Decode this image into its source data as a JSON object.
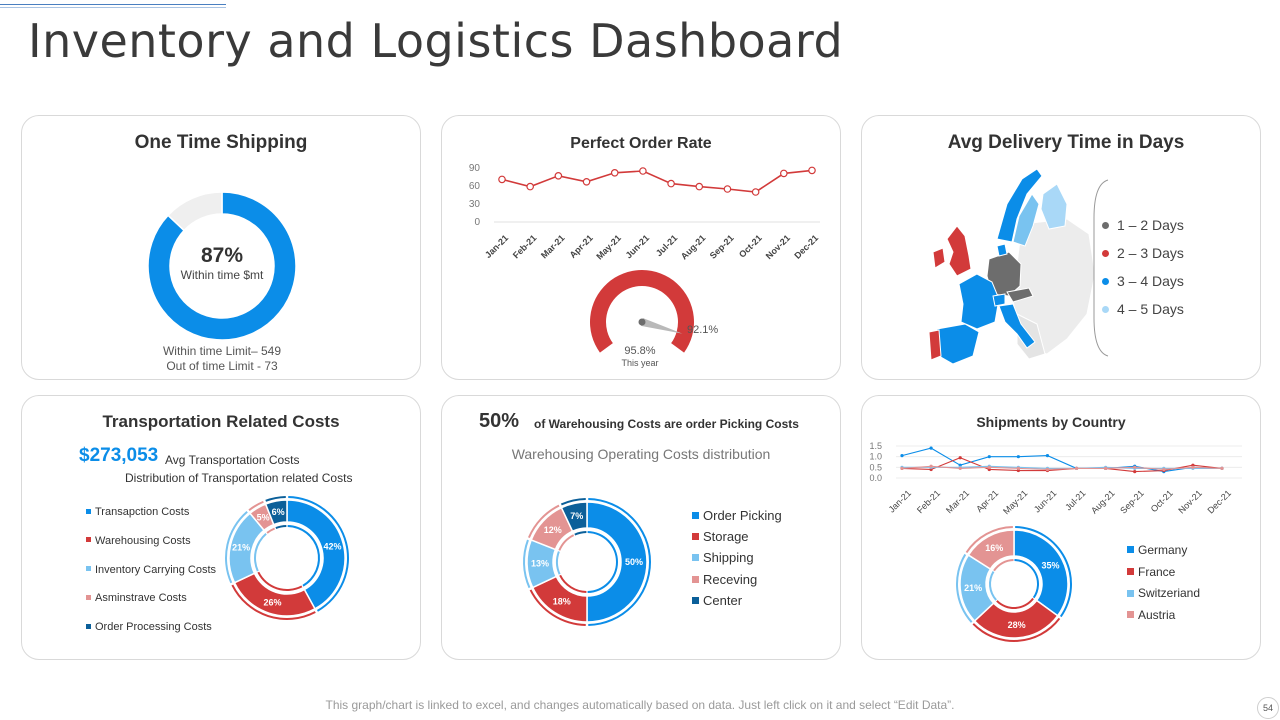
{
  "page": {
    "title": "Inventory and Logistics Dashboard",
    "footer": "This graph/chart is linked to excel, and changes automatically based on data. Just left click on it and select “Edit Data”.",
    "page_number": "54"
  },
  "colors": {
    "blue": "#0b8de8",
    "dark_blue": "#0b5f99",
    "light_blue": "#79c3f0",
    "red": "#d23a3a",
    "pink": "#e39493",
    "gray": "#6d6d6d",
    "light_gray": "#ececec"
  },
  "one_time_shipping": {
    "title": "One Time Shipping",
    "center_value": "87%",
    "center_label": "Within time $mt",
    "line1": "Within time Limit– 549",
    "line2": "Out of time Limit - 73"
  },
  "perfect_order": {
    "title": "Perfect Order Rate",
    "gauge_value": "92.1%",
    "year_value": "95.8%",
    "year_label": "This year"
  },
  "avg_delivery": {
    "title": "Avg Delivery Time in Days",
    "legend": [
      {
        "label": "1 – 2 Days",
        "color": "#6d6d6d"
      },
      {
        "label": "2 – 3 Days",
        "color": "#d23a3a"
      },
      {
        "label": "3 – 4 Days",
        "color": "#0b8de8"
      },
      {
        "label": "4 – 5 Days",
        "color": "#a9d8f7"
      }
    ]
  },
  "transport": {
    "title": "Transportation  Related  Costs",
    "amount": "$273,053",
    "amount_label": "Avg Transportation Costs",
    "subtitle": "Distribution of Transportation related Costs"
  },
  "warehousing": {
    "headline_pct": "50%",
    "headline_text": "of Warehousing Costs are order Picking Costs",
    "subtitle": "Warehousing  Operating  Costs  distribution"
  },
  "shipments": {
    "title": "Shipments by Country"
  },
  "chart_data": [
    {
      "id": "one_time_shipping",
      "type": "pie",
      "title": "One Time Shipping",
      "categories": [
        "Within time",
        "Out of time"
      ],
      "values": [
        87,
        13
      ],
      "colors": [
        "#0b8de8",
        "#efefef"
      ]
    },
    {
      "id": "perfect_order_rate",
      "type": "line",
      "title": "Perfect Order Rate",
      "categories": [
        "Jan-21",
        "Feb-21",
        "Mar-21",
        "Apr-21",
        "May-21",
        "Jun-21",
        "Jul-21",
        "Aug-21",
        "Sep-21",
        "Oct-21",
        "Nov-21",
        "Dec-21"
      ],
      "values": [
        71,
        59,
        77,
        67,
        82,
        85,
        64,
        59,
        55,
        50,
        81,
        86
      ],
      "yticks": [
        0,
        30,
        60,
        90
      ],
      "ylim": [
        0,
        90
      ]
    },
    {
      "id": "perfect_order_gauge",
      "type": "pie",
      "title": "Perfect Order Rate gauge",
      "value": 92.1
    },
    {
      "id": "transportation_costs",
      "type": "pie",
      "title": "Distribution of Transportation related Costs",
      "categories": [
        "Transapction Costs",
        "Warehousing Costs",
        "Inventory Carrying Costs",
        "Asminstrave Costs",
        "Order Processing Costs"
      ],
      "values": [
        42,
        26,
        21,
        5,
        6
      ],
      "colors": [
        "#0b8de8",
        "#d23a3a",
        "#79c3f0",
        "#e39493",
        "#0b5f99"
      ]
    },
    {
      "id": "warehousing_costs",
      "type": "pie",
      "title": "Warehousing Operating Costs distribution",
      "categories": [
        "Order Picking",
        "Storage",
        "Shipping",
        "Receving",
        "Center"
      ],
      "values": [
        50,
        18,
        13,
        12,
        7
      ],
      "colors": [
        "#0b8de8",
        "#d23a3a",
        "#79c3f0",
        "#e39493",
        "#0b5f99"
      ]
    },
    {
      "id": "shipments_line",
      "type": "line",
      "title": "Shipments by Country",
      "categories": [
        "Jan-21",
        "Feb-21",
        "Mar-21",
        "Apr-21",
        "May-21",
        "Jun-21",
        "Jul-21",
        "Aug-21",
        "Sep-21",
        "Oct-21",
        "Nov-21",
        "Dec-21"
      ],
      "yticks": [
        "0.0",
        "0.5",
        "1.0",
        "1.5"
      ],
      "ylim": [
        0,
        1.5
      ],
      "series": [
        {
          "name": "Germany",
          "color": "#0b8de8",
          "values": [
            1.05,
            1.4,
            0.6,
            1.0,
            1.0,
            1.05,
            0.45,
            0.45,
            0.55,
            0.3,
            0.5,
            0.45
          ]
        },
        {
          "name": "France",
          "color": "#d23a3a",
          "values": [
            0.45,
            0.4,
            0.95,
            0.4,
            0.35,
            0.35,
            0.45,
            0.45,
            0.3,
            0.35,
            0.6,
            0.45
          ]
        },
        {
          "name": "Switzeriand",
          "color": "#79c3f0",
          "values": [
            0.5,
            0.5,
            0.5,
            0.55,
            0.5,
            0.45,
            0.45,
            0.5,
            0.45,
            0.45,
            0.45,
            0.45
          ]
        },
        {
          "name": "Austria",
          "color": "#e39493",
          "values": [
            0.45,
            0.55,
            0.45,
            0.5,
            0.45,
            0.4,
            0.45,
            0.45,
            0.5,
            0.4,
            0.5,
            0.45
          ]
        }
      ]
    },
    {
      "id": "shipments_donut",
      "type": "pie",
      "title": "Shipments by Country",
      "categories": [
        "Germany",
        "France",
        "Switzeriand",
        "Austria"
      ],
      "values": [
        35,
        28,
        21,
        16
      ],
      "colors": [
        "#0b8de8",
        "#d23a3a",
        "#79c3f0",
        "#e39493"
      ]
    }
  ]
}
